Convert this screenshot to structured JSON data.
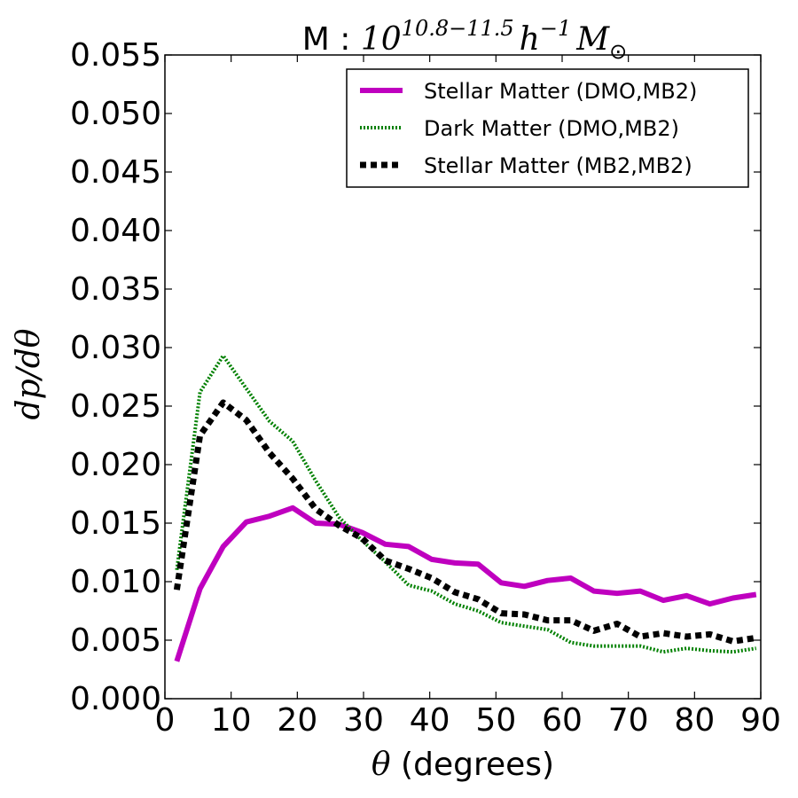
{
  "chart_data": {
    "type": "line",
    "title": {
      "prefix": "M : ",
      "base": "10",
      "exponent": "10.8−11.5",
      "h": "h",
      "h_exp": "−1",
      "m": "M",
      "m_sub": "⊙"
    },
    "xlabel": {
      "symbol": "θ",
      "text": " (degrees)"
    },
    "ylabel": "dp/dθ",
    "xlim": [
      0,
      90
    ],
    "ylim": [
      0,
      0.055
    ],
    "xticks": [
      0,
      10,
      20,
      30,
      40,
      50,
      60,
      70,
      80,
      90
    ],
    "xtick_labels": [
      "0",
      "10",
      "20",
      "30",
      "40",
      "50",
      "60",
      "70",
      "80",
      "90"
    ],
    "yticks": [
      0,
      0.005,
      0.01,
      0.015,
      0.02,
      0.025,
      0.03,
      0.035,
      0.04,
      0.045,
      0.05,
      0.055
    ],
    "ytick_labels": [
      "0.000",
      "0.005",
      "0.010",
      "0.015",
      "0.020",
      "0.025",
      "0.030",
      "0.035",
      "0.040",
      "0.045",
      "0.050",
      "0.055"
    ],
    "legend_position": "top-right",
    "x": [
      1.8,
      5.3,
      8.8,
      12.3,
      15.8,
      19.3,
      22.8,
      26.3,
      29.8,
      33.3,
      36.8,
      40.3,
      43.8,
      47.3,
      50.8,
      54.3,
      57.8,
      61.3,
      64.8,
      68.3,
      71.8,
      75.3,
      78.8,
      82.3,
      85.8,
      89.3
    ],
    "series": [
      {
        "name": "Stellar Matter (DMO,MB2)",
        "color": "#bf00bf",
        "style": "solid",
        "values": [
          0.0032,
          0.0094,
          0.013,
          0.0151,
          0.0156,
          0.0163,
          0.015,
          0.0149,
          0.0142,
          0.0132,
          0.013,
          0.0119,
          0.0116,
          0.0115,
          0.0099,
          0.0096,
          0.0101,
          0.0103,
          0.0092,
          0.009,
          0.0092,
          0.0084,
          0.0088,
          0.0081,
          0.0086,
          0.0089
        ]
      },
      {
        "name": "Dark Matter (DMO,MB2)",
        "color": "#008000",
        "style": "dotted",
        "values": [
          0.011,
          0.0262,
          0.0293,
          0.0265,
          0.0237,
          0.022,
          0.0186,
          0.0155,
          0.0135,
          0.0117,
          0.0097,
          0.0092,
          0.0081,
          0.0075,
          0.0065,
          0.0062,
          0.0059,
          0.0048,
          0.0045,
          0.0045,
          0.0045,
          0.004,
          0.0043,
          0.0041,
          0.004,
          0.0043
        ]
      },
      {
        "name": "Stellar Matter (MB2,MB2)",
        "color": "#000000",
        "style": "dashed",
        "values": [
          0.0093,
          0.0225,
          0.0253,
          0.0238,
          0.021,
          0.0188,
          0.0162,
          0.0148,
          0.0137,
          0.0118,
          0.0111,
          0.0103,
          0.0091,
          0.0085,
          0.0073,
          0.0072,
          0.0067,
          0.0067,
          0.0058,
          0.0064,
          0.0053,
          0.0056,
          0.0053,
          0.0055,
          0.0049,
          0.0052
        ]
      }
    ]
  }
}
